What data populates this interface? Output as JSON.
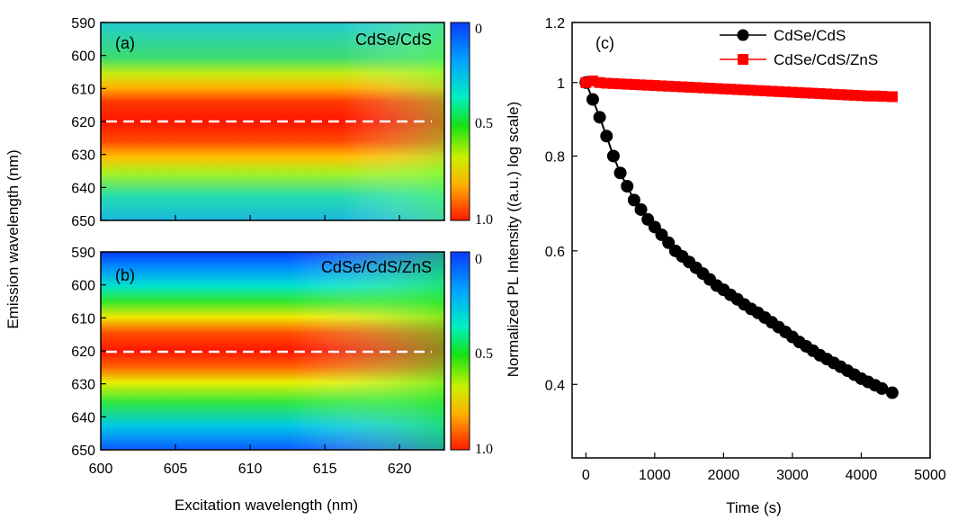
{
  "figure": {
    "shared_ylabel": "Emission wavelength (nm)",
    "shared_xlabel": "Excitation wavelength (nm)"
  },
  "chart_data": [
    {
      "type": "heatmap",
      "panel": "(a)",
      "title": "CdSe/CdS",
      "xlabel": "Excitation wavelength (nm)",
      "ylabel": "Emission wavelength (nm)",
      "xlim": [
        600,
        623
      ],
      "ylim": [
        590,
        650
      ],
      "y_inverted": true,
      "xticks": [
        600,
        605,
        610,
        615,
        620
      ],
      "yticks": [
        590,
        600,
        610,
        620,
        630,
        640,
        650
      ],
      "show_xtick_labels": false,
      "peak_emission_nm": 620,
      "marker_line_y": 620,
      "colorbar": {
        "ticks": [
          "0",
          "0.5",
          "1.0"
        ],
        "scale": "log",
        "top_color": "#0a3cff",
        "bottom_color": "#ff1a00"
      }
    },
    {
      "type": "heatmap",
      "panel": "(b)",
      "title": "CdSe/CdS/ZnS",
      "xlabel": "Excitation wavelength (nm)",
      "ylabel": "Emission wavelength (nm)",
      "xlim": [
        600,
        623
      ],
      "ylim": [
        590,
        650
      ],
      "y_inverted": true,
      "xticks": [
        600,
        605,
        610,
        615,
        620
      ],
      "yticks": [
        590,
        600,
        610,
        620,
        630,
        640,
        650
      ],
      "show_xtick_labels": true,
      "peak_emission_nm": 620,
      "marker_line_y": 620,
      "colorbar": {
        "ticks": [
          "0",
          "0.5",
          "1.0"
        ],
        "scale": "log",
        "top_color": "#0a3cff",
        "bottom_color": "#ff1a00"
      }
    },
    {
      "type": "scatter",
      "panel": "(c)",
      "xlabel": "Time (s)",
      "ylabel": "Normalized PL Intensity ((a.u.) log scale)",
      "xlim": [
        -200,
        5000
      ],
      "ylim": [
        0.32,
        1.2
      ],
      "yscale": "log",
      "xticks": [
        0,
        1000,
        2000,
        3000,
        4000,
        5000
      ],
      "yticks": [
        0.4,
        0.6,
        0.8,
        1,
        1.2
      ],
      "ytick_labels": [
        "0.4",
        "0.6",
        "0.8",
        "1",
        "1.2"
      ],
      "legend_position": "top-right",
      "series": [
        {
          "name": "CdSe/CdS",
          "color": "#000000",
          "marker": "circle",
          "x": [
            0,
            100,
            200,
            300,
            400,
            500,
            600,
            700,
            800,
            900,
            1000,
            1100,
            1200,
            1300,
            1400,
            1500,
            1600,
            1700,
            1800,
            1900,
            2000,
            2100,
            2200,
            2300,
            2400,
            2500,
            2600,
            2700,
            2800,
            2900,
            3000,
            3100,
            3200,
            3300,
            3400,
            3500,
            3600,
            3700,
            3800,
            3900,
            4000,
            4100,
            4200,
            4300,
            4450
          ],
          "y": [
            1.0,
            0.95,
            0.9,
            0.85,
            0.8,
            0.76,
            0.73,
            0.7,
            0.68,
            0.66,
            0.645,
            0.63,
            0.615,
            0.6,
            0.59,
            0.58,
            0.57,
            0.56,
            0.55,
            0.54,
            0.533,
            0.525,
            0.518,
            0.51,
            0.503,
            0.497,
            0.49,
            0.483,
            0.476,
            0.469,
            0.462,
            0.455,
            0.449,
            0.443,
            0.437,
            0.432,
            0.427,
            0.422,
            0.417,
            0.412,
            0.407,
            0.403,
            0.399,
            0.395,
            0.39
          ]
        },
        {
          "name": "CdSe/CdS/ZnS",
          "color": "#ff0000",
          "marker": "square",
          "x": [
            0,
            100,
            200,
            300,
            400,
            500,
            600,
            700,
            800,
            900,
            1000,
            1100,
            1200,
            1300,
            1400,
            1500,
            1600,
            1700,
            1800,
            1900,
            2000,
            2100,
            2200,
            2300,
            2400,
            2500,
            2600,
            2700,
            2800,
            2900,
            3000,
            3100,
            3200,
            3300,
            3400,
            3500,
            3600,
            3700,
            3800,
            3900,
            4000,
            4100,
            4200,
            4300,
            4450
          ],
          "y": [
            1.0,
            1.005,
            1.0,
            0.998,
            0.997,
            0.996,
            0.995,
            0.994,
            0.993,
            0.992,
            0.991,
            0.99,
            0.989,
            0.988,
            0.987,
            0.986,
            0.985,
            0.984,
            0.983,
            0.982,
            0.981,
            0.98,
            0.979,
            0.978,
            0.977,
            0.976,
            0.975,
            0.974,
            0.973,
            0.972,
            0.971,
            0.97,
            0.969,
            0.968,
            0.967,
            0.966,
            0.965,
            0.964,
            0.963,
            0.962,
            0.961,
            0.96,
            0.96,
            0.959,
            0.958
          ]
        }
      ]
    }
  ]
}
